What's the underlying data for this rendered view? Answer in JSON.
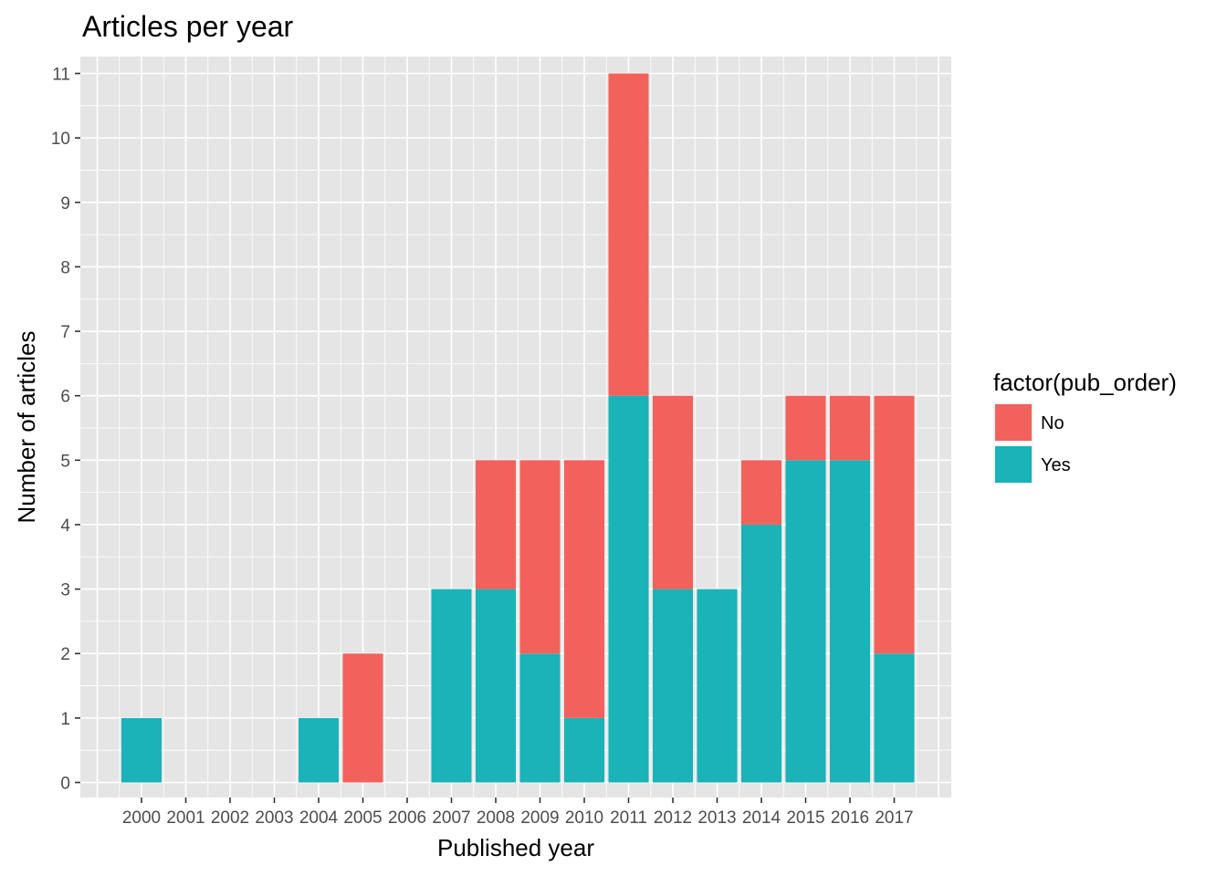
{
  "chart_data": {
    "type": "bar",
    "stacked": true,
    "title": "Articles per year",
    "xlabel": "Published year",
    "ylabel": "Number of articles",
    "categories": [
      "2000",
      "2001",
      "2002",
      "2003",
      "2004",
      "2005",
      "2006",
      "2007",
      "2008",
      "2009",
      "2010",
      "2011",
      "2012",
      "2013",
      "2014",
      "2015",
      "2016",
      "2017"
    ],
    "series": [
      {
        "name": "Yes",
        "color": "#19b3b8",
        "values": [
          1,
          0,
          0,
          0,
          1,
          0,
          0,
          3,
          3,
          2,
          1,
          6,
          3,
          3,
          4,
          5,
          5,
          2
        ]
      },
      {
        "name": "No",
        "color": "#f2615b",
        "values": [
          0,
          0,
          0,
          0,
          0,
          2,
          0,
          0,
          2,
          3,
          4,
          5,
          3,
          0,
          1,
          1,
          1,
          4
        ]
      }
    ],
    "ylim": [
      0,
      11
    ],
    "yticks": [
      0,
      1,
      2,
      3,
      4,
      5,
      6,
      7,
      8,
      9,
      10,
      11
    ],
    "grid": true,
    "legend": {
      "title": "factor(pub_order)",
      "position": "right",
      "entries": [
        {
          "label": "No",
          "color": "#f2615b"
        },
        {
          "label": "Yes",
          "color": "#19b3b8"
        }
      ]
    },
    "panel_background": "#e5e5e5",
    "grid_color": "#ffffff"
  }
}
